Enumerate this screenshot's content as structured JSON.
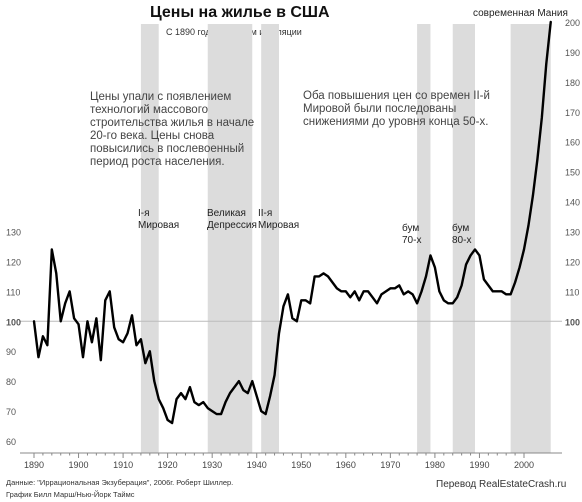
{
  "title": "Цены на жилье в США",
  "subtitle": "С 1890 года, с учетом инфляции",
  "annotations": {
    "left_text": "Цены упали с появлением технологий массового строительства жилья в начале 20-го века. Цены снова повысились в послевоенный период роста населения.",
    "right_text": "Оба повышения цен со времен II-й Мировой были последованы снижениями до уровня конца 50-х."
  },
  "footer": {
    "source_line1": "Данные: \"Иррациональная Экзуберация\", 2006г. Роберт Шиллер.",
    "source_line2": "График Билл Марш/Нью-Йорк Таймс",
    "translation": "Перевод RealEstateCrash.ru"
  },
  "chart_data": {
    "type": "line",
    "title": "Цены на жилье в США",
    "subtitle": "С 1890 года, с учетом инфляции",
    "xlim": [
      1888,
      2008
    ],
    "ylim": [
      57,
      203
    ],
    "x_ticks": [
      1890,
      1900,
      1910,
      1920,
      1930,
      1940,
      1950,
      1960,
      1970,
      1980,
      1990,
      2000
    ],
    "y_ticks_left": [
      60,
      70,
      80,
      90,
      100,
      110,
      120,
      130
    ],
    "y_ticks_right": [
      100,
      110,
      120,
      130,
      140,
      150,
      160,
      170,
      180,
      190,
      200
    ],
    "baseline": 100,
    "shaded_periods": [
      {
        "label": "I-я Мировая",
        "start": 1914,
        "end": 1918
      },
      {
        "label": "Великая Депрессия",
        "start": 1929,
        "end": 1939
      },
      {
        "label": "II-я Мировая",
        "start": 1941,
        "end": 1945
      },
      {
        "label": "бум 70-х",
        "start": 1976,
        "end": 1979
      },
      {
        "label": "бум 80-х",
        "start": 1984,
        "end": 1989
      },
      {
        "label": "современная Мания",
        "start": 1997,
        "end": 2006
      }
    ],
    "series": [
      {
        "color": "#000000",
        "points": [
          [
            1890,
            100
          ],
          [
            1891,
            88
          ],
          [
            1892,
            95
          ],
          [
            1893,
            92
          ],
          [
            1894,
            124
          ],
          [
            1895,
            116
          ],
          [
            1896,
            100
          ],
          [
            1897,
            106
          ],
          [
            1898,
            110
          ],
          [
            1899,
            101
          ],
          [
            1900,
            99
          ],
          [
            1901,
            88
          ],
          [
            1902,
            100
          ],
          [
            1903,
            93
          ],
          [
            1904,
            101
          ],
          [
            1905,
            87
          ],
          [
            1906,
            107
          ],
          [
            1907,
            110
          ],
          [
            1908,
            98
          ],
          [
            1909,
            94
          ],
          [
            1910,
            93
          ],
          [
            1911,
            96
          ],
          [
            1912,
            102
          ],
          [
            1913,
            92
          ],
          [
            1914,
            94
          ],
          [
            1915,
            86
          ],
          [
            1916,
            90
          ],
          [
            1917,
            80
          ],
          [
            1918,
            74
          ],
          [
            1919,
            71
          ],
          [
            1920,
            67
          ],
          [
            1921,
            66
          ],
          [
            1922,
            74
          ],
          [
            1923,
            76
          ],
          [
            1924,
            74
          ],
          [
            1925,
            78
          ],
          [
            1926,
            73
          ],
          [
            1927,
            72
          ],
          [
            1928,
            73
          ],
          [
            1929,
            71
          ],
          [
            1930,
            70
          ],
          [
            1931,
            69
          ],
          [
            1932,
            69
          ],
          [
            1933,
            73
          ],
          [
            1934,
            76
          ],
          [
            1935,
            78
          ],
          [
            1936,
            80
          ],
          [
            1937,
            77
          ],
          [
            1938,
            76
          ],
          [
            1939,
            80
          ],
          [
            1940,
            75
          ],
          [
            1941,
            70
          ],
          [
            1942,
            69
          ],
          [
            1943,
            75
          ],
          [
            1944,
            82
          ],
          [
            1945,
            96
          ],
          [
            1946,
            105
          ],
          [
            1947,
            109
          ],
          [
            1948,
            101
          ],
          [
            1949,
            100
          ],
          [
            1950,
            107
          ],
          [
            1951,
            107
          ],
          [
            1952,
            106
          ],
          [
            1953,
            115
          ],
          [
            1954,
            115
          ],
          [
            1955,
            116
          ],
          [
            1956,
            115
          ],
          [
            1957,
            113
          ],
          [
            1958,
            111
          ],
          [
            1959,
            110
          ],
          [
            1960,
            110
          ],
          [
            1961,
            108
          ],
          [
            1962,
            110
          ],
          [
            1963,
            107
          ],
          [
            1964,
            110
          ],
          [
            1965,
            110
          ],
          [
            1966,
            108
          ],
          [
            1967,
            106
          ],
          [
            1968,
            109
          ],
          [
            1969,
            110
          ],
          [
            1970,
            111
          ],
          [
            1971,
            111
          ],
          [
            1972,
            112
          ],
          [
            1973,
            109
          ],
          [
            1974,
            110
          ],
          [
            1975,
            109
          ],
          [
            1976,
            106
          ],
          [
            1977,
            110
          ],
          [
            1978,
            115
          ],
          [
            1979,
            122
          ],
          [
            1980,
            118
          ],
          [
            1981,
            110
          ],
          [
            1982,
            107
          ],
          [
            1983,
            106
          ],
          [
            1984,
            106
          ],
          [
            1985,
            108
          ],
          [
            1986,
            112
          ],
          [
            1987,
            119
          ],
          [
            1988,
            122
          ],
          [
            1989,
            124
          ],
          [
            1990,
            122
          ],
          [
            1991,
            114
          ],
          [
            1992,
            112
          ],
          [
            1993,
            110
          ],
          [
            1994,
            110
          ],
          [
            1995,
            110
          ],
          [
            1996,
            109
          ],
          [
            1997,
            109
          ],
          [
            1998,
            113
          ],
          [
            1999,
            118
          ],
          [
            2000,
            124
          ],
          [
            2001,
            132
          ],
          [
            2002,
            142
          ],
          [
            2003,
            154
          ],
          [
            2004,
            168
          ],
          [
            2005,
            186
          ],
          [
            2006,
            200
          ]
        ]
      }
    ]
  }
}
